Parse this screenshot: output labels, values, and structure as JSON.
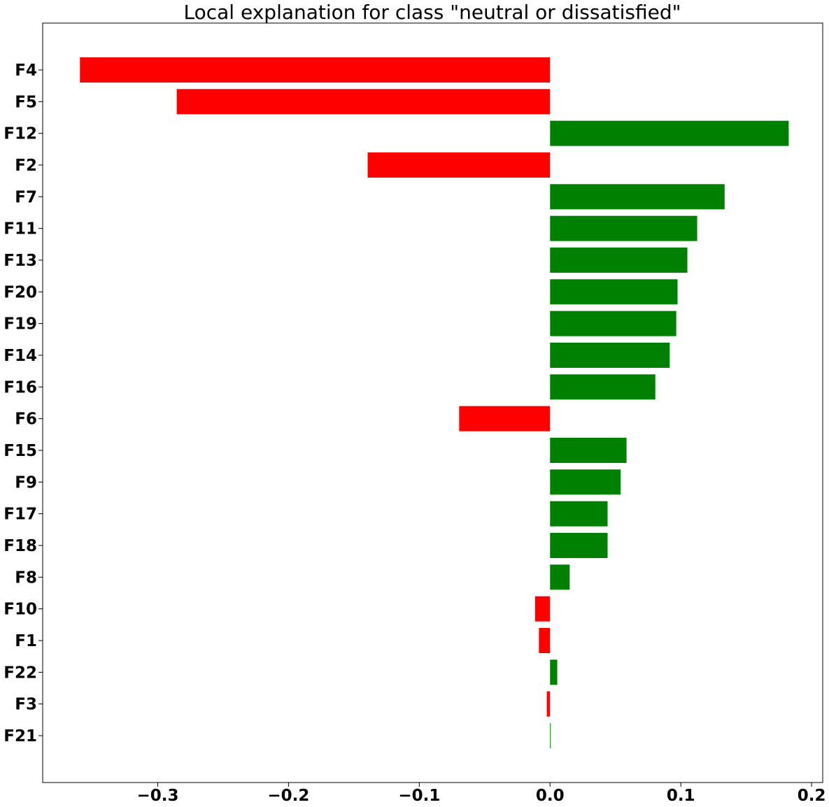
{
  "chart_data": {
    "type": "bar",
    "orientation": "horizontal",
    "title": "Local explanation for class \"neutral or dissatisfied\"",
    "xlabel": "",
    "ylabel": "",
    "categories": [
      "F4",
      "F5",
      "F12",
      "F2",
      "F7",
      "F11",
      "F13",
      "F20",
      "F19",
      "F14",
      "F16",
      "F6",
      "F15",
      "F9",
      "F17",
      "F18",
      "F8",
      "F10",
      "F1",
      "F22",
      "F3",
      "F21"
    ],
    "values": [
      -0.3595,
      -0.2855,
      0.1825,
      -0.1395,
      0.1335,
      0.1125,
      0.105,
      0.0975,
      0.0965,
      0.0915,
      0.0805,
      -0.0695,
      0.0585,
      0.054,
      0.044,
      0.044,
      0.015,
      -0.0115,
      -0.0085,
      0.0055,
      -0.0025,
      0.0005
    ],
    "xlim": [
      -0.388,
      0.2085
    ],
    "xticks": [
      -0.3,
      -0.2,
      -0.1,
      0.0,
      0.1,
      0.2
    ],
    "xtick_labels": [
      "−0.3",
      "−0.2",
      "−0.1",
      "0.0",
      "0.1",
      "0.2"
    ],
    "grid": false,
    "colors": {
      "positive": "#008000",
      "negative": "#ff0000",
      "axis": "#000000",
      "background": "#ffffff"
    }
  }
}
